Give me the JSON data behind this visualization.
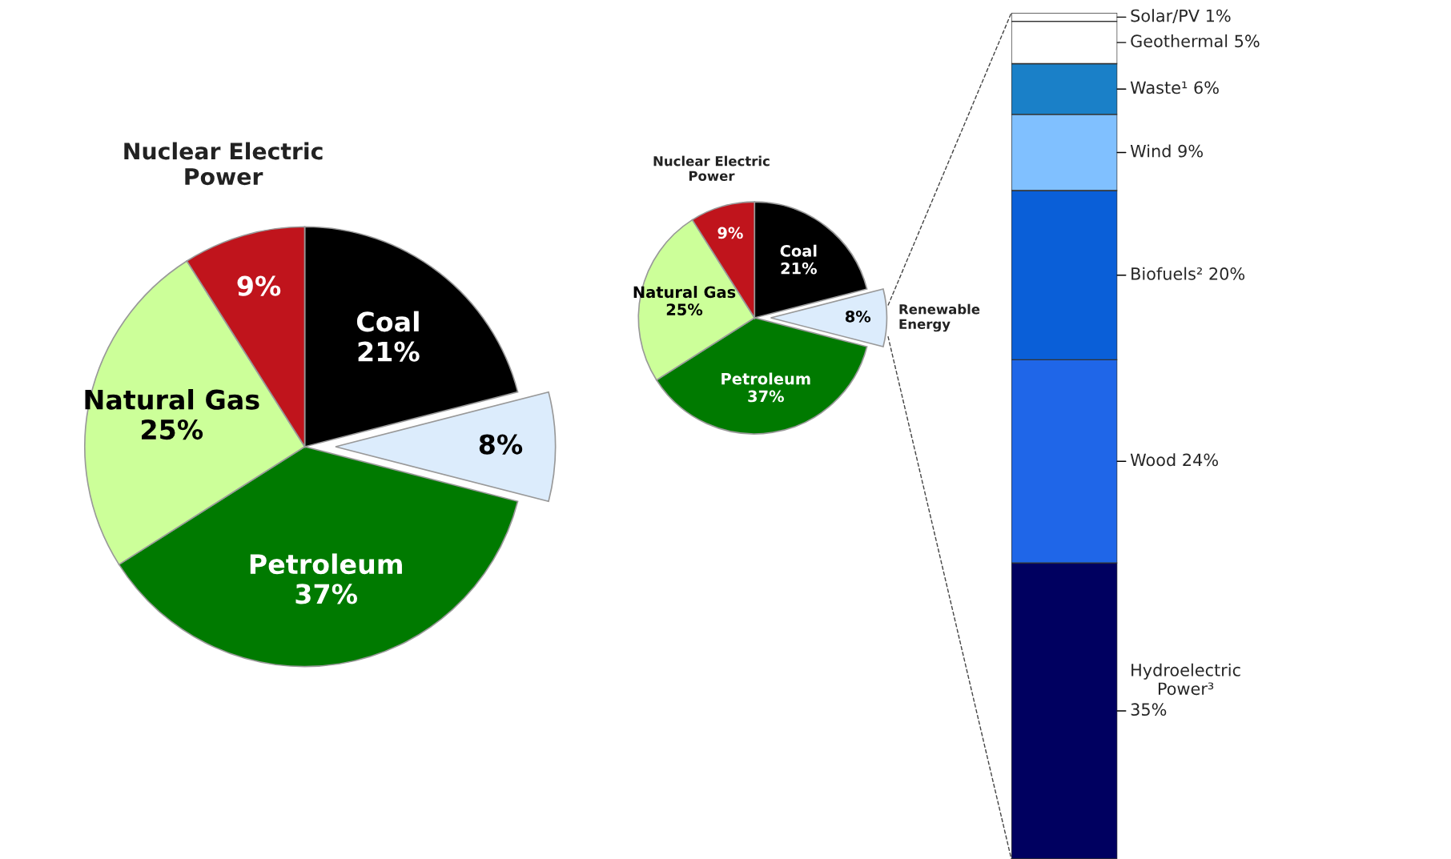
{
  "chart_data": [
    {
      "type": "pie",
      "categories": [
        "Coal",
        null,
        "Petroleum",
        "Natural Gas",
        "Nuclear Electric Power"
      ],
      "values": [
        21,
        8,
        37,
        25,
        9
      ],
      "value_labels": [
        "21%",
        "8%",
        "37%",
        "25%",
        "9%"
      ],
      "colors": [
        "#000000",
        "#dcecfc",
        "#007a00",
        "#ccff99",
        "#c0141c"
      ]
    },
    {
      "type": "pie",
      "categories": [
        "Coal",
        "Renewable Energy",
        "Petroleum",
        "Natural Gas",
        "Nuclear Electric Power"
      ],
      "values": [
        21,
        8,
        37,
        25,
        9
      ],
      "value_labels": [
        "21%",
        "8%",
        "37%",
        "25%",
        "9%"
      ],
      "colors": [
        "#000000",
        "#dcecfc",
        "#007a00",
        "#ccff99",
        "#c0141c"
      ]
    },
    {
      "type": "bar",
      "stacked": true,
      "ylim": [
        0,
        100
      ],
      "categories": [
        null
      ],
      "series": [
        {
          "name": "Hydroelectric Power³",
          "color": "#000060",
          "values": [
            35
          ],
          "value_labels": [
            "35%"
          ]
        },
        {
          "name": "Wood",
          "color": "#1f66e8",
          "values": [
            24
          ],
          "value_labels": [
            "24%"
          ]
        },
        {
          "name": "Biofuels²",
          "color": "#0a5fd8",
          "values": [
            20
          ],
          "value_labels": [
            "20%"
          ]
        },
        {
          "name": "Wind",
          "color": "#80c0ff",
          "values": [
            9
          ],
          "value_labels": [
            "9%"
          ]
        },
        {
          "name": "Waste¹",
          "color": "#1a80c8",
          "values": [
            6
          ],
          "value_labels": [
            "6%"
          ]
        },
        {
          "name": "Geothermal",
          "color": "#ffffff",
          "values": [
            5
          ],
          "value_labels": [
            "5%"
          ]
        },
        {
          "name": "Solar/PV",
          "color": "#ffffff",
          "values": [
            1
          ],
          "value_labels": [
            "1%"
          ]
        }
      ]
    }
  ]
}
